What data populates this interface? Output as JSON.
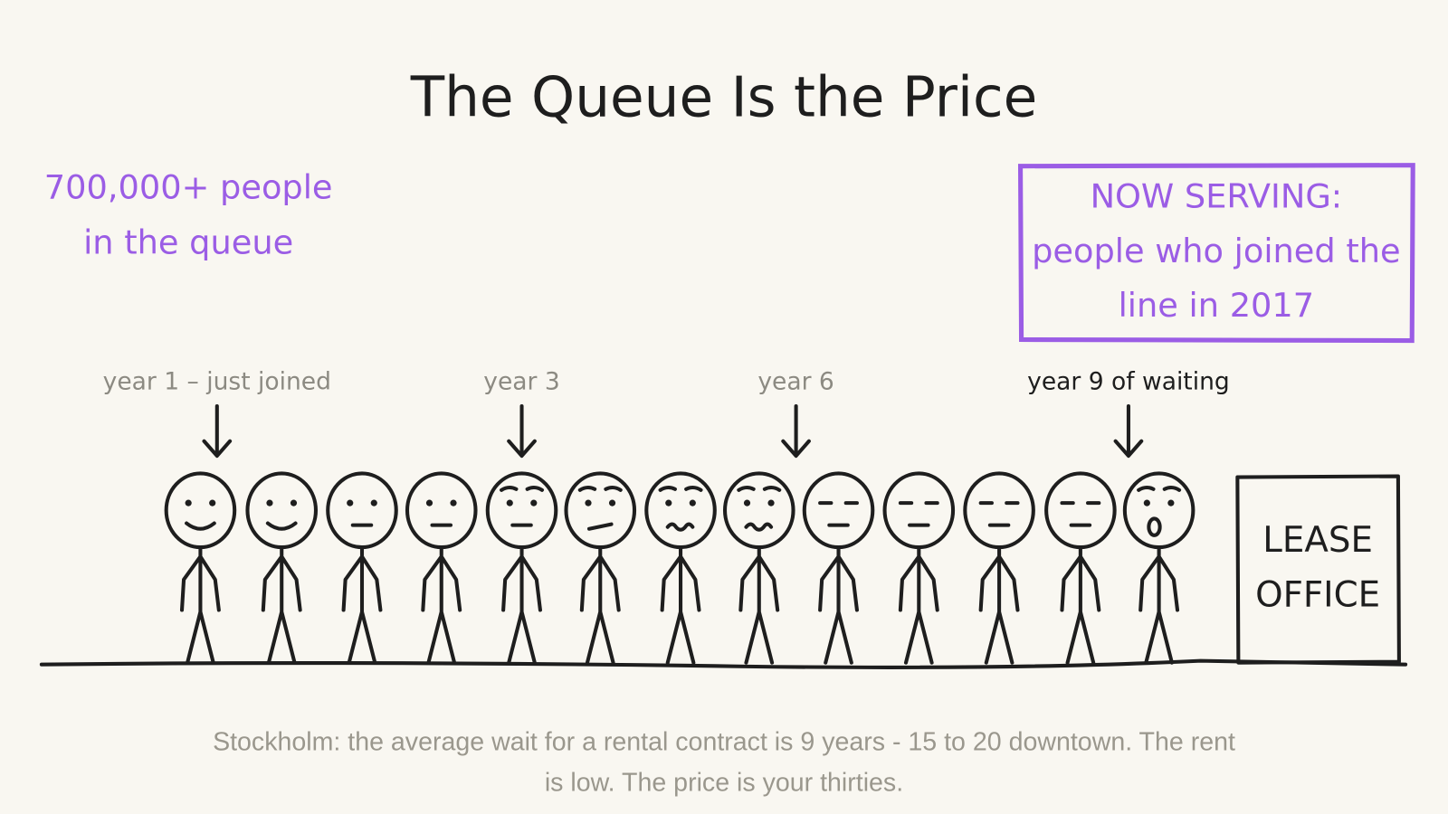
{
  "title": "The Queue Is the Price",
  "stat": [
    "700,000+ people",
    "in the queue"
  ],
  "sign": [
    "NOW SERVING:",
    "people who joined the",
    "line in 2017"
  ],
  "markers": [
    "year 1 – just joined",
    "year 3",
    "year 6",
    "year 9 of waiting"
  ],
  "office": [
    "LEASE",
    "OFFICE"
  ],
  "caption": [
    "Stockholm: the average wait for a rental contract is 9 years - 15 to 20 downtown. The rent",
    "is low. The price is your thirties."
  ]
}
